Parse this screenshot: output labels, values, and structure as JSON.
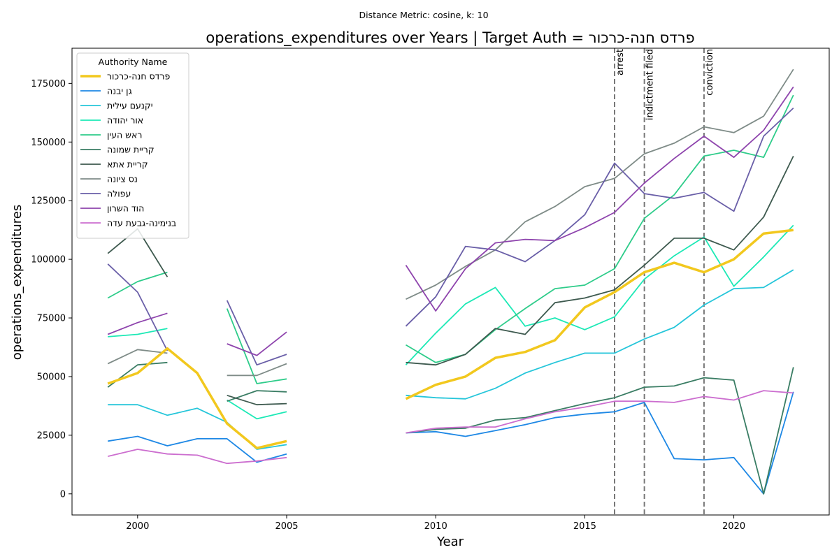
{
  "chart_data": {
    "type": "line",
    "subtitle": "Distance Metric: cosine, k: 10",
    "title": "operations_expenditures over Years | Target Auth = פרדס חנה-כרכור",
    "xlabel": "Year",
    "ylabel": "operations_expenditures",
    "xlim": [
      1997.8,
      2023.2
    ],
    "ylim": [
      -9000,
      190000
    ],
    "x_ticks": [
      2000,
      2005,
      2010,
      2015,
      2020
    ],
    "y_ticks": [
      0,
      25000,
      50000,
      75000,
      100000,
      125000,
      150000,
      175000
    ],
    "grid": false,
    "legend_title": "Authority Name",
    "legend_position": "upper-left",
    "x": [
      1999,
      2000,
      2001,
      2002,
      2003,
      2004,
      2005,
      2006,
      2007,
      2008,
      2009,
      2010,
      2011,
      2012,
      2013,
      2014,
      2015,
      2016,
      2017,
      2018,
      2019,
      2020,
      2021,
      2022
    ],
    "events": [
      {
        "x": 2016,
        "label": "arrest"
      },
      {
        "x": 2017,
        "label": "indictment filed"
      },
      {
        "x": 2019,
        "label": "conviction"
      }
    ],
    "series": [
      {
        "name": "פרדס חנה-כרכור",
        "color": "#f2c81e",
        "target": true,
        "values": [
          47000,
          51500,
          62000,
          51500,
          30000,
          19500,
          22500,
          null,
          null,
          null,
          40500,
          46500,
          50000,
          58000,
          60500,
          65500,
          79500,
          86000,
          94500,
          98500,
          94500,
          100000,
          111000,
          112500
        ]
      },
      {
        "name": "גן יבנה",
        "color": "#1e88e5",
        "values": [
          22500,
          24500,
          20500,
          23500,
          23500,
          13500,
          17000,
          null,
          null,
          null,
          26000,
          26500,
          24500,
          27000,
          29500,
          32500,
          34000,
          35000,
          39000,
          15000,
          14500,
          15500,
          0,
          43500
        ]
      },
      {
        "name": "יקנעם עילית",
        "color": "#26c6da",
        "values": [
          38000,
          38000,
          33500,
          36500,
          30500,
          19000,
          21000,
          null,
          null,
          null,
          42000,
          41000,
          40500,
          45000,
          51500,
          56000,
          60000,
          60000,
          66000,
          71000,
          80500,
          87500,
          88000,
          95500
        ]
      },
      {
        "name": "אור יהודה",
        "color": "#1de9b6",
        "values": [
          67000,
          68000,
          70500,
          null,
          40000,
          32000,
          35000,
          null,
          null,
          null,
          55000,
          68500,
          81000,
          88000,
          71500,
          75000,
          70000,
          75500,
          91500,
          101500,
          109500,
          88500,
          101000,
          114500
        ]
      },
      {
        "name": "ראש העין",
        "color": "#2ecc8a",
        "values": [
          83500,
          90500,
          94500,
          null,
          79000,
          47000,
          49000,
          null,
          null,
          null,
          63500,
          56000,
          59500,
          70000,
          79000,
          87500,
          89000,
          96000,
          117500,
          127500,
          144000,
          146500,
          143500,
          170000
        ]
      },
      {
        "name": "קריית שמונה",
        "color": "#3a7d64",
        "values": [
          45500,
          55000,
          56000,
          null,
          39500,
          44000,
          43500,
          null,
          null,
          null,
          26000,
          27500,
          28000,
          31500,
          32500,
          35500,
          38500,
          41000,
          45500,
          46000,
          49500,
          48500,
          0,
          54000
        ]
      },
      {
        "name": "קריית אתא",
        "color": "#3e5a4f",
        "values": [
          102500,
          113000,
          92500,
          null,
          42000,
          38000,
          38500,
          null,
          null,
          null,
          56000,
          55000,
          59500,
          70500,
          68000,
          81500,
          83500,
          87000,
          97500,
          109000,
          109000,
          104000,
          118000,
          144000
        ]
      },
      {
        "name": "נס ציונה",
        "color": "#7f8c88",
        "values": [
          55500,
          61500,
          60000,
          null,
          50500,
          50500,
          55500,
          null,
          null,
          null,
          83000,
          89000,
          97000,
          104000,
          116000,
          122500,
          131000,
          134500,
          145000,
          149500,
          156500,
          154000,
          161000,
          181000
        ]
      },
      {
        "name": "עפולה",
        "color": "#6a5fa8",
        "values": [
          98000,
          86000,
          61000,
          null,
          82500,
          55000,
          59500,
          null,
          null,
          null,
          71500,
          84000,
          105500,
          104000,
          99000,
          108000,
          119000,
          141000,
          128000,
          126000,
          128500,
          120500,
          152500,
          164500
        ]
      },
      {
        "name": "הוד השרון",
        "color": "#8e44ad",
        "values": [
          68000,
          73000,
          77000,
          null,
          64000,
          59000,
          69000,
          null,
          null,
          null,
          97500,
          78000,
          96000,
          107000,
          108500,
          108000,
          113500,
          120000,
          132500,
          143000,
          152500,
          143500,
          155000,
          173500
        ]
      },
      {
        "name": "בנימינה-גבעת עדה",
        "color": "#cc6ecf",
        "values": [
          16000,
          19000,
          17000,
          16500,
          13000,
          14000,
          15500,
          null,
          null,
          null,
          26000,
          28000,
          28500,
          28500,
          32000,
          35000,
          37000,
          39500,
          39500,
          39000,
          41500,
          40000,
          44000,
          43000
        ]
      }
    ]
  }
}
